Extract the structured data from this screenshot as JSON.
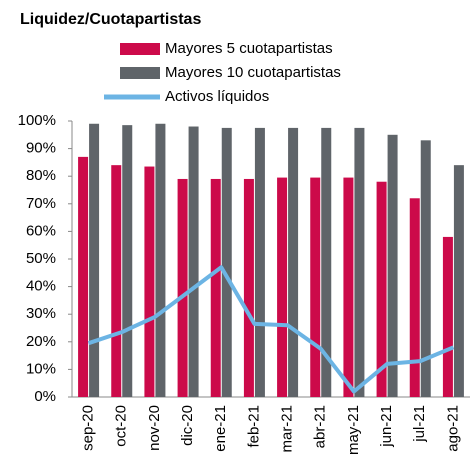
{
  "chart_data": {
    "type": "bar",
    "title": "Liquidez/Cuotapartistas",
    "categories": [
      "sep-20",
      "oct-20",
      "nov-20",
      "dic-20",
      "ene-21",
      "feb-21",
      "mar-21",
      "abr-21",
      "may-21",
      "jun-21",
      "jul-21",
      "ago-21"
    ],
    "series": [
      {
        "name": "Mayores 5 cuotapartistas",
        "type": "bar",
        "color": "#cc0a4a",
        "values": [
          87,
          84,
          83.5,
          79,
          79,
          79,
          79.5,
          79.5,
          79.5,
          78,
          72,
          58
        ]
      },
      {
        "name": "Mayores 10 cuotapartistas",
        "type": "bar",
        "color": "#5f6469",
        "values": [
          99,
          98.5,
          99,
          98,
          97.5,
          97.5,
          97.5,
          97.5,
          97.5,
          95,
          93,
          84
        ]
      },
      {
        "name": "Activos líquidos",
        "type": "line",
        "color": "#6cb4e4",
        "values": [
          19.5,
          23.5,
          29,
          38,
          47,
          26.5,
          26,
          17.5,
          2,
          12,
          13,
          18
        ]
      }
    ],
    "ylim": [
      0,
      100
    ],
    "yticks": [
      {
        "value": 0,
        "label": "0%"
      },
      {
        "value": 10,
        "label": "10%"
      },
      {
        "value": 20,
        "label": "20%"
      },
      {
        "value": 30,
        "label": "30%"
      },
      {
        "value": 40,
        "label": "40%"
      },
      {
        "value": 50,
        "label": "50%"
      },
      {
        "value": 60,
        "label": "60%"
      },
      {
        "value": 70,
        "label": "70%"
      },
      {
        "value": 80,
        "label": "80%"
      },
      {
        "value": 90,
        "label": "90%"
      },
      {
        "value": 100,
        "label": "100%"
      }
    ],
    "grid": false
  }
}
